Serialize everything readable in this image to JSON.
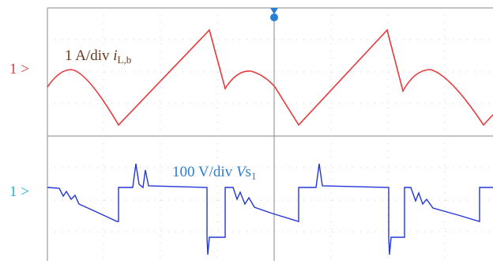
{
  "channels": [
    {
      "marker": "1 >",
      "scale": "1 A/div",
      "symbol": "i",
      "subscript": "L,b"
    },
    {
      "marker": "1 >",
      "scale": "100 V/div",
      "symbol": "V",
      "symbol_tail": "s",
      "subscript": "1"
    }
  ]
}
